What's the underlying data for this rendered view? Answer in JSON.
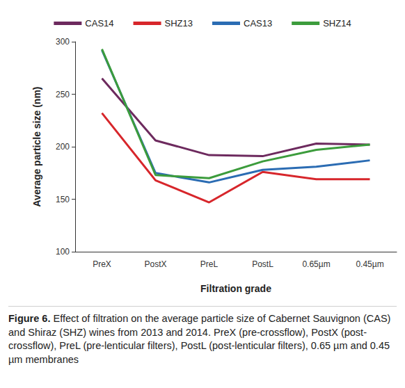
{
  "chart_data": {
    "type": "line",
    "x_label": "Filtration grade",
    "y_label": "Average particle size (nm)",
    "categories": [
      "PreX",
      "PostX",
      "PreL",
      "PostL",
      "0.65µm",
      "0.45µm"
    ],
    "series": [
      {
        "name": "CAS14",
        "color": "#6d2a5e",
        "values": [
          265,
          206,
          192,
          191,
          203,
          202
        ]
      },
      {
        "name": "SHZ13",
        "color": "#d7262b",
        "values": [
          232,
          168,
          147,
          176,
          169,
          169
        ]
      },
      {
        "name": "CAS13",
        "color": "#2b6cb3",
        "values": [
          292,
          175,
          166,
          178,
          181,
          187
        ]
      },
      {
        "name": "SHZ14",
        "color": "#3c9c3c",
        "values": [
          293,
          173,
          170,
          186,
          197,
          202
        ]
      }
    ],
    "ylim": [
      100,
      300
    ],
    "yticks": [
      100,
      150,
      200,
      250,
      300
    ],
    "grid": false,
    "legend": "top",
    "caption_label": "Figure 6.",
    "caption": "Effect of filtration on the average particle size of Cabernet Sauvignon (CAS) and Shiraz (SHZ) wines from 2013 and 2014. PreX (pre-crossflow), PostX (post-crossflow), PreL (pre-lenticular filters), PostL (post-lenticular filters), 0.65 µm and 0.45 µm membranes"
  }
}
